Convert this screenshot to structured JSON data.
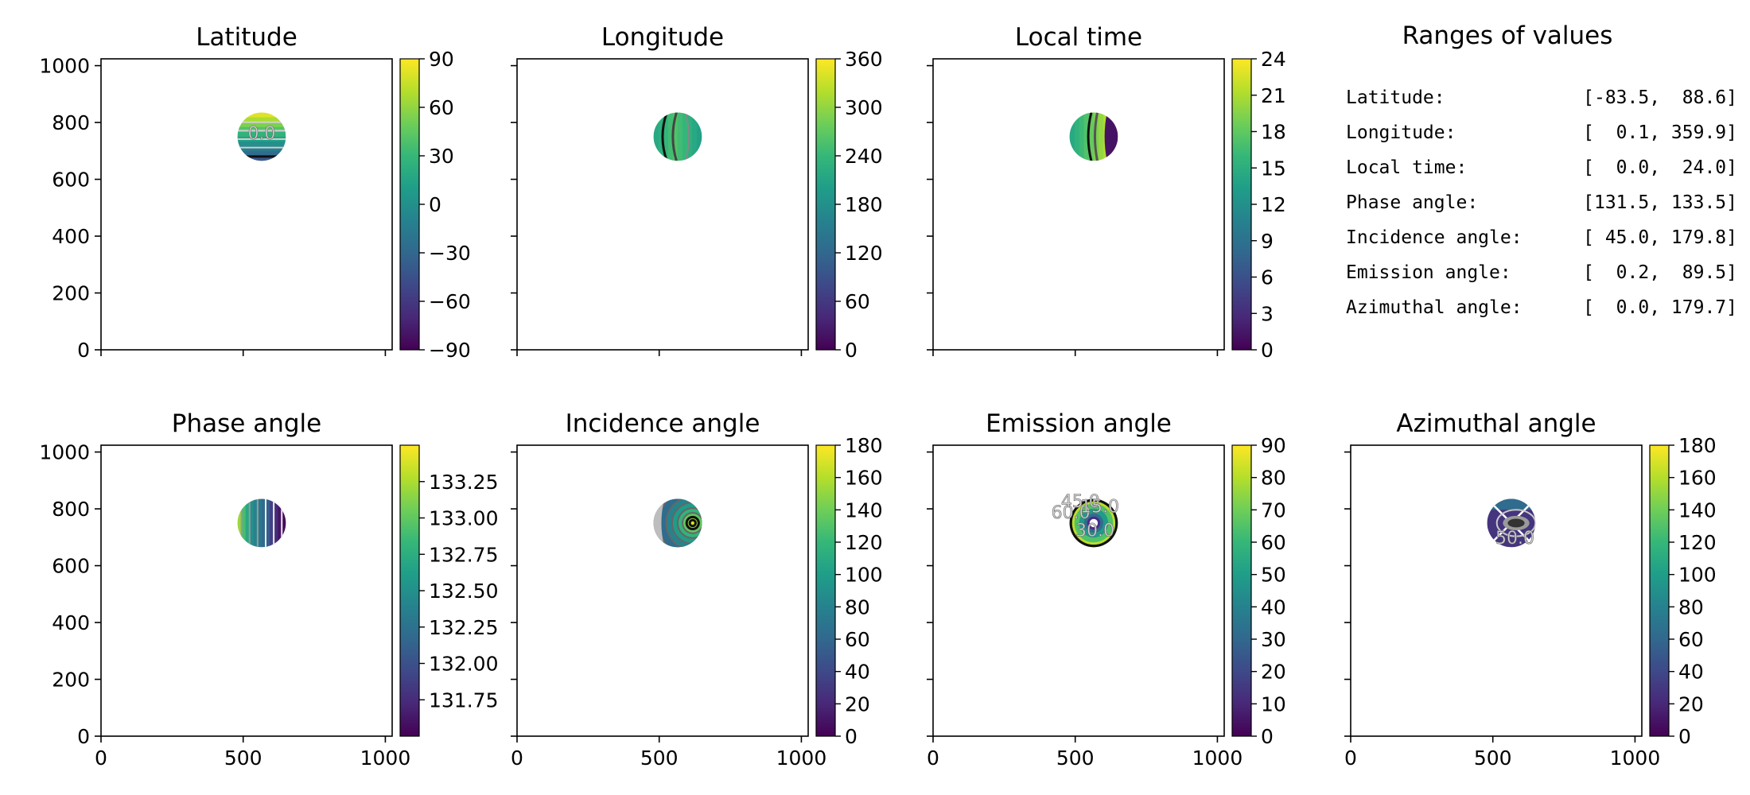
{
  "chart_data": [
    {
      "type": "heatmap",
      "title": "Latitude",
      "xlim": [
        0,
        1024
      ],
      "ylim": [
        0,
        1024
      ],
      "x_ticks": [
        "0",
        "500",
        "1000"
      ],
      "x_tick_values": [
        0,
        500,
        1000
      ],
      "x_ticks_labelled": false,
      "y_ticks": [
        "0",
        "200",
        "400",
        "600",
        "800",
        "1000"
      ],
      "y_tick_values": [
        0,
        200,
        400,
        600,
        800,
        1000
      ],
      "y_ticks_labelled": true,
      "disk": {
        "center": [
          565,
          750
        ],
        "radius": 85
      },
      "pattern": "horizontal",
      "colorbar": {
        "min": -90,
        "max": 90,
        "ticks": [
          "90",
          "60",
          "30",
          "0",
          "−30",
          "−60",
          "−90"
        ],
        "tick_values": [
          90,
          60,
          30,
          0,
          -30,
          -60,
          -90
        ]
      },
      "annotations": [
        "0.0"
      ]
    },
    {
      "type": "heatmap",
      "title": "Longitude",
      "xlim": [
        0,
        1024
      ],
      "ylim": [
        0,
        1024
      ],
      "x_ticks": [
        "0",
        "500",
        "1000"
      ],
      "x_tick_values": [
        0,
        500,
        1000
      ],
      "x_ticks_labelled": false,
      "y_ticks": [
        "0",
        "200",
        "400",
        "600",
        "800",
        "1000"
      ],
      "y_tick_values": [
        0,
        200,
        400,
        600,
        800,
        1000
      ],
      "y_ticks_labelled": false,
      "disk": {
        "center": [
          565,
          750
        ],
        "radius": 85
      },
      "pattern": "vertical",
      "colorbar": {
        "min": 0,
        "max": 360,
        "ticks": [
          "360",
          "300",
          "240",
          "180",
          "120",
          "60",
          "0"
        ],
        "tick_values": [
          360,
          300,
          240,
          180,
          120,
          60,
          0
        ]
      },
      "annotations": []
    },
    {
      "type": "heatmap",
      "title": "Local time",
      "xlim": [
        0,
        1024
      ],
      "ylim": [
        0,
        1024
      ],
      "x_ticks": [
        "0",
        "500",
        "1000"
      ],
      "x_tick_values": [
        0,
        500,
        1000
      ],
      "x_ticks_labelled": false,
      "y_ticks": [
        "0",
        "200",
        "400",
        "600",
        "800",
        "1000"
      ],
      "y_tick_values": [
        0,
        200,
        400,
        600,
        800,
        1000
      ],
      "y_ticks_labelled": false,
      "disk": {
        "center": [
          565,
          750
        ],
        "radius": 85
      },
      "pattern": "localtime",
      "colorbar": {
        "min": 0,
        "max": 24,
        "ticks": [
          "24",
          "21",
          "18",
          "15",
          "12",
          "9",
          "6",
          "3",
          "0"
        ],
        "tick_values": [
          24,
          21,
          18,
          15,
          12,
          9,
          6,
          3,
          0
        ]
      },
      "annotations": []
    },
    {
      "type": "heatmap",
      "title": "Phase angle",
      "xlim": [
        0,
        1024
      ],
      "ylim": [
        0,
        1024
      ],
      "x_ticks": [
        "0",
        "500",
        "1000"
      ],
      "x_tick_values": [
        0,
        500,
        1000
      ],
      "x_ticks_labelled": true,
      "y_ticks": [
        "0",
        "200",
        "400",
        "600",
        "800",
        "1000"
      ],
      "y_tick_values": [
        0,
        200,
        400,
        600,
        800,
        1000
      ],
      "y_ticks_labelled": true,
      "disk": {
        "center": [
          565,
          750
        ],
        "radius": 85
      },
      "pattern": "phase",
      "colorbar": {
        "min": 131.5,
        "max": 133.5,
        "ticks": [
          "133.25",
          "133.00",
          "132.75",
          "132.50",
          "132.25",
          "132.00",
          "131.75"
        ],
        "tick_values": [
          133.25,
          133.0,
          132.75,
          132.5,
          132.25,
          132.0,
          131.75
        ]
      },
      "annotations": []
    },
    {
      "type": "heatmap",
      "title": "Incidence angle",
      "xlim": [
        0,
        1024
      ],
      "ylim": [
        0,
        1024
      ],
      "x_ticks": [
        "0",
        "500",
        "1000"
      ],
      "x_tick_values": [
        0,
        500,
        1000
      ],
      "x_ticks_labelled": true,
      "y_ticks": [
        "0",
        "200",
        "400",
        "600",
        "800",
        "1000"
      ],
      "y_tick_values": [
        0,
        200,
        400,
        600,
        800,
        1000
      ],
      "y_ticks_labelled": false,
      "disk": {
        "center": [
          565,
          750
        ],
        "radius": 85
      },
      "pattern": "incidence",
      "colorbar": {
        "min": 0,
        "max": 180,
        "ticks": [
          "180",
          "160",
          "140",
          "120",
          "100",
          "80",
          "60",
          "40",
          "20",
          "0"
        ],
        "tick_values": [
          180,
          160,
          140,
          120,
          100,
          80,
          60,
          40,
          20,
          0
        ]
      },
      "annotations": []
    },
    {
      "type": "heatmap",
      "title": "Emission angle",
      "xlim": [
        0,
        1024
      ],
      "ylim": [
        0,
        1024
      ],
      "x_ticks": [
        "0",
        "500",
        "1000"
      ],
      "x_tick_values": [
        0,
        500,
        1000
      ],
      "x_ticks_labelled": true,
      "y_ticks": [
        "0",
        "200",
        "400",
        "600",
        "800",
        "1000"
      ],
      "y_tick_values": [
        0,
        200,
        400,
        600,
        800,
        1000
      ],
      "y_ticks_labelled": false,
      "disk": {
        "center": [
          565,
          750
        ],
        "radius": 85
      },
      "pattern": "emission",
      "colorbar": {
        "min": 0,
        "max": 90,
        "ticks": [
          "90",
          "80",
          "70",
          "60",
          "50",
          "40",
          "30",
          "20",
          "10",
          "0"
        ],
        "tick_values": [
          90,
          80,
          70,
          60,
          50,
          40,
          30,
          20,
          10,
          0
        ]
      },
      "annotations": [
        "60.0",
        "45.0",
        "15.0",
        "30.0"
      ]
    },
    {
      "type": "heatmap",
      "title": "Azimuthal angle",
      "xlim": [
        0,
        1024
      ],
      "ylim": [
        0,
        1024
      ],
      "x_ticks": [
        "0",
        "500",
        "1000"
      ],
      "x_tick_values": [
        0,
        500,
        1000
      ],
      "x_ticks_labelled": true,
      "y_ticks": [
        "0",
        "200",
        "400",
        "600",
        "800",
        "1000"
      ],
      "y_tick_values": [
        0,
        200,
        400,
        600,
        800,
        1000
      ],
      "y_ticks_labelled": false,
      "disk": {
        "center": [
          565,
          750
        ],
        "radius": 85
      },
      "pattern": "azimuth",
      "colorbar": {
        "min": 0,
        "max": 180,
        "ticks": [
          "180",
          "160",
          "140",
          "120",
          "100",
          "80",
          "60",
          "40",
          "20",
          "0"
        ],
        "tick_values": [
          180,
          160,
          140,
          120,
          100,
          80,
          60,
          40,
          20,
          0
        ]
      },
      "annotations": [
        "50.0"
      ]
    }
  ],
  "ranges_panel": {
    "title": "Ranges of values",
    "rows": [
      {
        "label": "Latitude:",
        "value": "[-83.5,  88.6]"
      },
      {
        "label": "Longitude:",
        "value": "[  0.1, 359.9]"
      },
      {
        "label": "Local time:",
        "value": "[  0.0,  24.0]"
      },
      {
        "label": "Phase angle:",
        "value": "[131.5, 133.5]"
      },
      {
        "label": "Incidence angle:",
        "value": "[ 45.0, 179.8]"
      },
      {
        "label": "Emission angle:",
        "value": "[  0.2,  89.5]"
      },
      {
        "label": "Azimuthal angle:",
        "value": "[  0.0, 179.7]"
      }
    ]
  },
  "colormap": [
    "#440154",
    "#482878",
    "#3e4989",
    "#31688e",
    "#26828e",
    "#1f9e89",
    "#35b779",
    "#6ece58",
    "#b5de2b",
    "#fde725"
  ]
}
